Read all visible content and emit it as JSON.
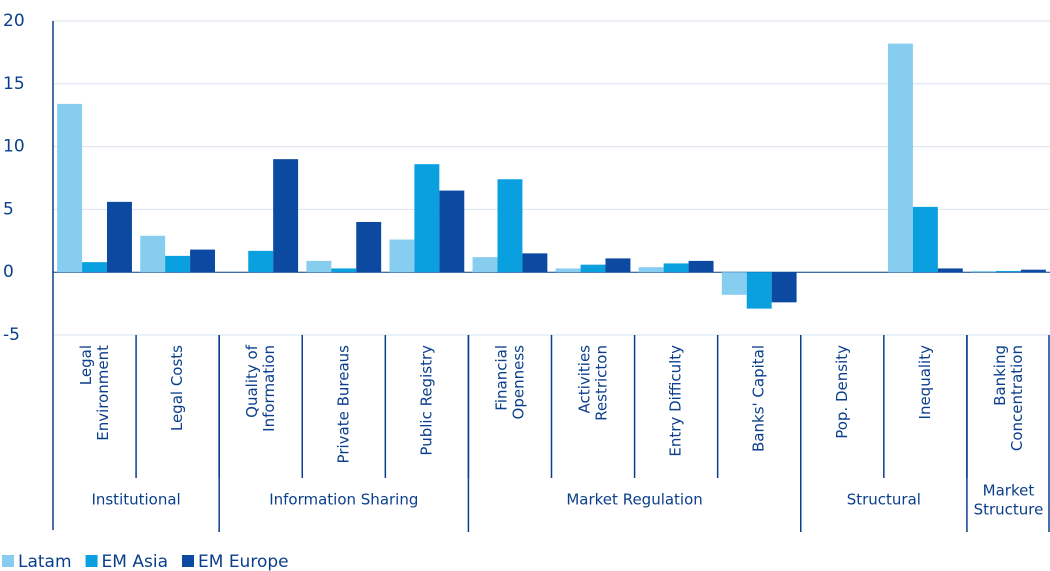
{
  "chart_data": {
    "type": "bar",
    "categories": [
      "Legal\nEnvironment",
      "Legal Costs",
      "Quality of\nInformation",
      "Private Bureaus",
      "Public Registry",
      "Financial\nOpenness",
      "Activities\nRestricton",
      "Entry Difficulty",
      "Banks' Capital",
      "Pop. Density",
      "Inequality",
      "Banking\nConcentration"
    ],
    "groups": [
      {
        "name": "Institutional",
        "span": 2
      },
      {
        "name": "Information Sharing",
        "span": 3
      },
      {
        "name": "Market Regulation",
        "span": 4
      },
      {
        "name": "Structural",
        "span": 2
      },
      {
        "name": "Market\nStructure",
        "span": 1
      }
    ],
    "series": [
      {
        "name": "Latam",
        "color": "#87cdf0",
        "values": [
          13.4,
          2.9,
          0,
          0.9,
          2.6,
          1.2,
          0.3,
          0.4,
          -1.8,
          0,
          18.2,
          0.1
        ]
      },
      {
        "name": "EM Asia",
        "color": "#0aa0e0",
        "values": [
          0.8,
          1.3,
          1.7,
          0.3,
          8.6,
          7.4,
          0.6,
          0.7,
          -2.9,
          0,
          5.2,
          0.1
        ]
      },
      {
        "name": "EM Europe",
        "color": "#0b4aa0",
        "values": [
          5.6,
          1.8,
          9.0,
          4.0,
          6.5,
          1.5,
          1.1,
          0.9,
          -2.4,
          0,
          0.3,
          0.2
        ]
      }
    ],
    "ylim": [
      -5,
      20
    ],
    "yticks": [
      -5,
      0,
      5,
      10,
      15,
      20
    ],
    "grid": true
  }
}
